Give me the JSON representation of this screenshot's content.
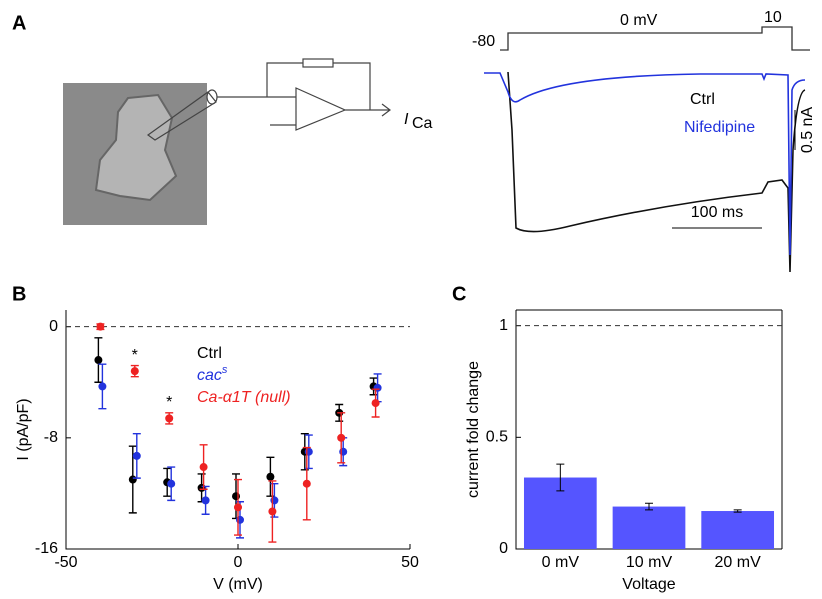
{
  "panel_a": {
    "label": "A",
    "amplifier_output": "I",
    "amplifier_output_sub": "Ca",
    "protocol_labels": [
      "-80",
      "0 mV",
      "10"
    ],
    "legend": [
      "Ctrl",
      "Nifedipine"
    ],
    "scale_current": "0.5 nA",
    "scale_time": "100 ms"
  },
  "chart_data": [
    {
      "type": "scatter",
      "panel": "B",
      "xlabel": "V (mV)",
      "ylabel": "I (pA/pF)",
      "x": [
        -40,
        -30,
        -20,
        -10,
        0,
        10,
        20,
        30,
        40
      ],
      "xlim": [
        -50,
        50
      ],
      "xticks": [
        -50,
        0,
        50
      ],
      "ylim": [
        -16,
        1.2
      ],
      "yticks": [
        0,
        -8,
        -16
      ],
      "reference_line": 0,
      "series": [
        {
          "name": "Ctrl",
          "color": "#000000",
          "values": [
            -2.4,
            -11.0,
            -11.2,
            -11.6,
            -12.2,
            -10.8,
            -9.0,
            -6.2,
            -4.3
          ],
          "errors": [
            1.6,
            2.4,
            1.0,
            1.0,
            1.6,
            1.4,
            1.3,
            0.6,
            0.6
          ]
        },
        {
          "name": "cac",
          "name_superscript": "s",
          "color": "#2233dd",
          "values": [
            -4.3,
            -9.3,
            -11.3,
            -12.5,
            -13.9,
            -12.5,
            -9.0,
            -9.0,
            -4.4
          ],
          "errors": [
            1.6,
            1.6,
            1.2,
            1.0,
            1.3,
            1.2,
            1.2,
            1.0,
            1.0
          ]
        },
        {
          "name": "Ca-α1T (null)",
          "color": "#ee2222",
          "values": [
            0,
            -3.2,
            -6.6,
            -10.1,
            -13.0,
            -13.3,
            -11.3,
            -8.0,
            -5.5
          ],
          "errors": [
            0.2,
            0.4,
            0.4,
            1.6,
            2.0,
            2.2,
            2.6,
            1.8,
            1.0
          ]
        }
      ],
      "annotations": [
        {
          "text": "*",
          "x": -30
        },
        {
          "text": "*",
          "x": -20
        }
      ]
    },
    {
      "type": "bar",
      "panel": "C",
      "xlabel": "Voltage",
      "ylabel": "current fold change",
      "categories": [
        "0 mV",
        "10 mV",
        "20 mV"
      ],
      "values": [
        0.32,
        0.19,
        0.17
      ],
      "errors": [
        0.06,
        0.015,
        0.005
      ],
      "color": "#5555ff",
      "ylim": [
        0,
        1.07
      ],
      "yticks": [
        0,
        0.5,
        1
      ],
      "reference_line": 1
    }
  ]
}
